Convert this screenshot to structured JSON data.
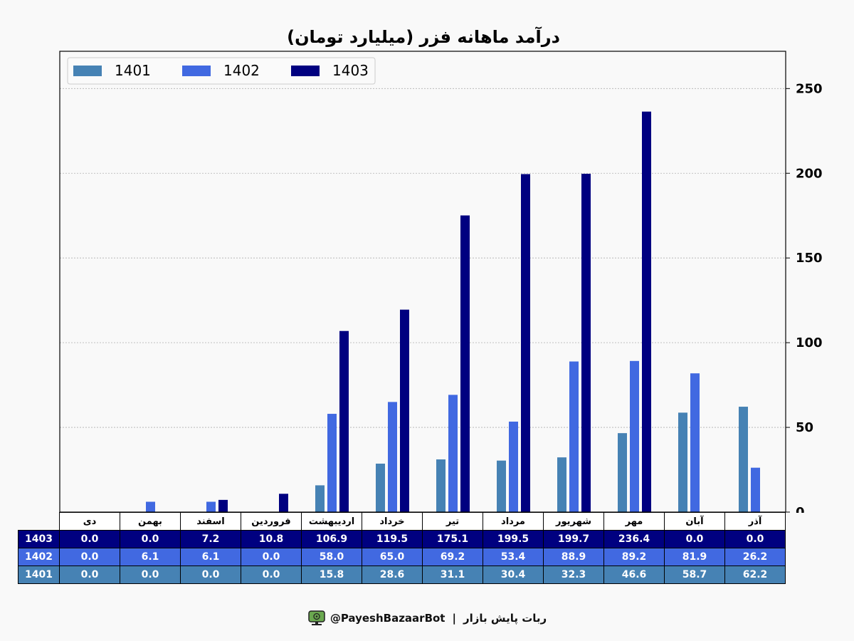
{
  "chart_data": {
    "type": "bar",
    "title": "درآمد ماهانه فزر (میلیارد تومان)",
    "categories": [
      "دی",
      "بهمن",
      "اسفند",
      "فروردین",
      "اردیبهشت",
      "خرداد",
      "تیر",
      "مرداد",
      "شهریور",
      "مهر",
      "آبان",
      "آذر"
    ],
    "series": [
      {
        "name": "1401",
        "color": "#4682b4",
        "values": [
          0.0,
          0.0,
          0.0,
          0.0,
          15.8,
          28.6,
          31.1,
          30.4,
          32.3,
          46.6,
          58.7,
          62.2
        ]
      },
      {
        "name": "1402",
        "color": "#4169e1",
        "values": [
          0.0,
          6.1,
          6.1,
          0.0,
          58.0,
          65.0,
          69.2,
          53.4,
          88.9,
          89.2,
          81.9,
          26.2
        ]
      },
      {
        "name": "1403",
        "color": "#000080",
        "values": [
          0.0,
          0.0,
          7.2,
          10.8,
          106.9,
          119.5,
          175.1,
          199.5,
          199.7,
          236.4,
          0.0,
          0.0
        ]
      }
    ],
    "ylim": [
      0,
      272
    ],
    "yticks": [
      0,
      50,
      100,
      150,
      200,
      250
    ],
    "y_axis_side": "right",
    "grid": true,
    "legend": "top-left",
    "table_rows": [
      "1403",
      "1402",
      "1401"
    ],
    "table_values": {
      "1403": [
        "0.0",
        "0.0",
        "7.2",
        "10.8",
        "106.9",
        "119.5",
        "175.1",
        "199.5",
        "199.7",
        "236.4",
        "0.0",
        "0.0"
      ],
      "1402": [
        "0.0",
        "6.1",
        "6.1",
        "0.0",
        "58.0",
        "65.0",
        "69.2",
        "53.4",
        "88.9",
        "89.2",
        "81.9",
        "26.2"
      ],
      "1401": [
        "0.0",
        "0.0",
        "0.0",
        "0.0",
        "15.8",
        "28.6",
        "31.1",
        "30.4",
        "32.3",
        "46.6",
        "58.7",
        "62.2"
      ]
    }
  },
  "footer": {
    "handle": "@PayeshBazaarBot",
    "separator": "|",
    "bot_name": "ربات پایش بازار",
    "icon": "robot-icon"
  }
}
